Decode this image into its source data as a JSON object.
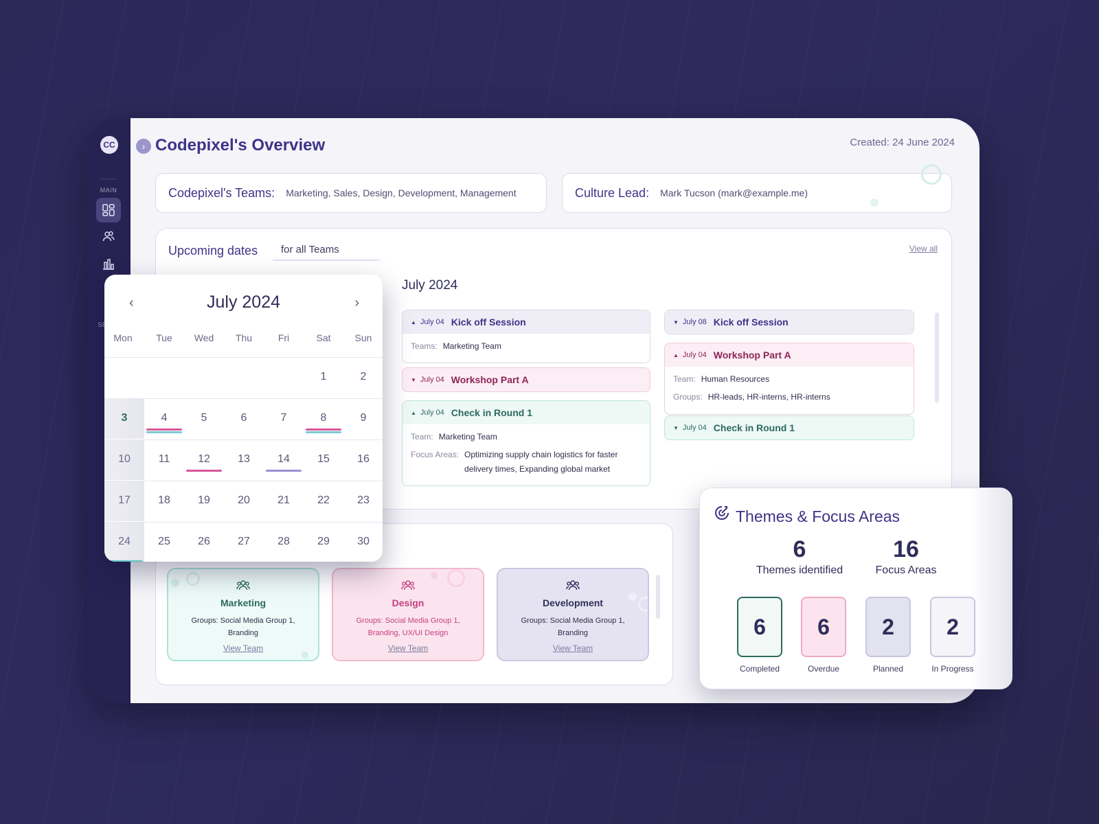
{
  "sidebar": {
    "logo": "CC",
    "main_label": "MAIN",
    "settings_label": "SET",
    "items": [
      {
        "icon": "dashboard-icon",
        "active": true
      },
      {
        "icon": "users-icon",
        "active": false
      },
      {
        "icon": "bar-chart-icon",
        "active": false
      }
    ]
  },
  "header": {
    "title": "Codepixel's Overview",
    "created": "Created: 24 June 2024"
  },
  "info": {
    "teams_label": "Codepixel's Teams:",
    "teams_value": "Marketing, Sales, Design, Development, Management",
    "lead_label": "Culture Lead:",
    "lead_value": "Mark Tucson (mark@example.me)"
  },
  "upcoming": {
    "title": "Upcoming dates",
    "filter": "for all Teams",
    "view_all": "View all",
    "month": "July 2024",
    "left_events": [
      {
        "date": "July 04",
        "name": "Kick off Session",
        "style": "purple",
        "expanded": true,
        "rows": [
          {
            "k": "Teams:",
            "v": "Marketing Team"
          }
        ]
      },
      {
        "date": "July 04",
        "name": "Workshop Part A",
        "style": "pink",
        "expanded": false,
        "rows": []
      },
      {
        "date": "July 04",
        "name": "Check in Round 1",
        "style": "green",
        "expanded": true,
        "rows": [
          {
            "k": "Team:",
            "v": "Marketing Team"
          },
          {
            "k": "Focus Areas:",
            "v": "Optimizing supply chain logistics for faster delivery times, Expanding global market"
          }
        ]
      }
    ],
    "right_events": [
      {
        "date": "July 08",
        "name": "Kick off Session",
        "style": "purple",
        "expanded": false,
        "rows": []
      },
      {
        "date": "July 04",
        "name": "Workshop Part A",
        "style": "pink",
        "expanded": true,
        "rows": [
          {
            "k": "Team:",
            "v": "Human Resources"
          },
          {
            "k": "Groups:",
            "v": "HR-leads, HR-interns, HR-interns"
          }
        ]
      },
      {
        "date": "July 04",
        "name": "Check in Round 1",
        "style": "green",
        "expanded": false,
        "rows": []
      }
    ]
  },
  "teams": [
    {
      "name": "Marketing",
      "groups": "Groups: Social Media Group 1, Branding",
      "link": "View Team"
    },
    {
      "name": "Design",
      "groups": "Groups: Social Media Group 1, Branding, UX/UI Design",
      "link": "View Team"
    },
    {
      "name": "Development",
      "groups": "Groups: Social Media Group 1, Branding",
      "link": "View Team"
    }
  ],
  "calendar": {
    "title": "July 2024",
    "prev": "‹",
    "next": "›",
    "weekdays": [
      "Mon",
      "Tue",
      "Wed",
      "Thu",
      "Fri",
      "Sat",
      "Sun"
    ],
    "weeks": [
      [
        "",
        "",
        "",
        "",
        "",
        "1",
        "2"
      ],
      [
        "3",
        "4",
        "5",
        "6",
        "7",
        "8",
        "9"
      ],
      [
        "10",
        "11",
        "12",
        "13",
        "14",
        "15",
        "16"
      ],
      [
        "17",
        "18",
        "19",
        "20",
        "21",
        "22",
        "23"
      ],
      [
        "24",
        "25",
        "26",
        "27",
        "28",
        "29",
        "30"
      ]
    ],
    "today": "3",
    "event_marks": [
      {
        "day": "4",
        "colors": [
          "#d9569a",
          "#7cc9d0"
        ]
      },
      {
        "day": "8",
        "colors": [
          "#d9569a",
          "#7cc9d0"
        ]
      },
      {
        "day": "12",
        "colors": [
          "#d9569a"
        ]
      },
      {
        "day": "14",
        "colors": [
          "#9a8fd0"
        ]
      },
      {
        "day": "24",
        "colors": [
          "#5fc3c4"
        ]
      }
    ]
  },
  "themes": {
    "title": "Themes & Focus Areas",
    "themes_count": "6",
    "themes_label": "Themes identified",
    "focus_count": "16",
    "focus_label": "Focus Areas",
    "statuses": [
      {
        "count": "6",
        "label": "Completed",
        "border": "#2c6a60",
        "bg": "#f1f8f6"
      },
      {
        "count": "6",
        "label": "Overdue",
        "border": "#f2a7c6",
        "bg": "#fbe4ee"
      },
      {
        "count": "2",
        "label": "Planned",
        "border": "#c9c6df",
        "bg": "#e3e2ef"
      },
      {
        "count": "2",
        "label": "In Progress",
        "border": "#c9c6df",
        "bg": "#f4f4f9"
      }
    ]
  }
}
